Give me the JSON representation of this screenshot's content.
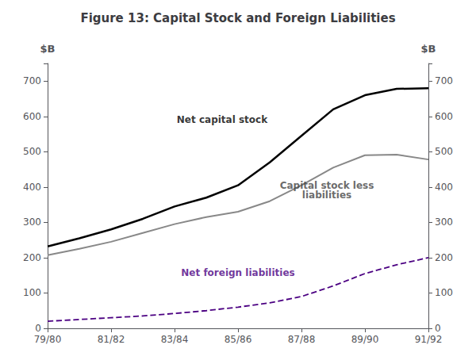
{
  "chart_data": {
    "type": "line",
    "title": "Figure 13: Capital Stock and Foreign Liabilities",
    "ylabel": "$B",
    "y2label": "$B",
    "x": [
      0,
      1,
      2,
      3,
      4,
      5,
      6,
      7,
      8,
      9,
      10,
      11,
      12
    ],
    "xlim": [
      0,
      12
    ],
    "xticks": [
      {
        "value": 0,
        "label": "79/80"
      },
      {
        "value": 2,
        "label": "81/82"
      },
      {
        "value": 4,
        "label": "83/84"
      },
      {
        "value": 6,
        "label": "85/86"
      },
      {
        "value": 8,
        "label": "87/88"
      },
      {
        "value": 10,
        "label": "89/90"
      },
      {
        "value": 12,
        "label": "91/92"
      }
    ],
    "ylim": [
      0,
      750
    ],
    "yticks": [
      0,
      100,
      200,
      300,
      400,
      500,
      600,
      700
    ],
    "y2lim": [
      0,
      750
    ],
    "y2ticks": [
      0,
      100,
      200,
      300,
      400,
      500,
      600,
      700
    ],
    "grid": false,
    "series": [
      {
        "color": "#000000",
        "line_style": "solid",
        "values": [
          232,
          255,
          280,
          310,
          345,
          370,
          405,
          470,
          545,
          620,
          660,
          678,
          680
        ]
      },
      {
        "color": "#888888",
        "line_style": "solid",
        "values": [
          207,
          225,
          245,
          270,
          295,
          315,
          330,
          360,
          405,
          455,
          490,
          492,
          478
        ]
      },
      {
        "color": "#4B0082",
        "line_style": "dashed",
        "values": [
          20,
          25,
          30,
          35,
          42,
          50,
          60,
          72,
          90,
          120,
          155,
          180,
          200
        ]
      }
    ],
    "annotations": [
      {
        "text": "Net capital stock",
        "x": 5.5,
        "y": 590,
        "color": "#000000"
      },
      {
        "text": "Capital stock less\nliabilities",
        "x": 8.8,
        "y": 390,
        "color": "#444444"
      },
      {
        "text": "Net foreign liabilities",
        "x": 6.0,
        "y": 158,
        "color": "#4B0082"
      }
    ]
  }
}
